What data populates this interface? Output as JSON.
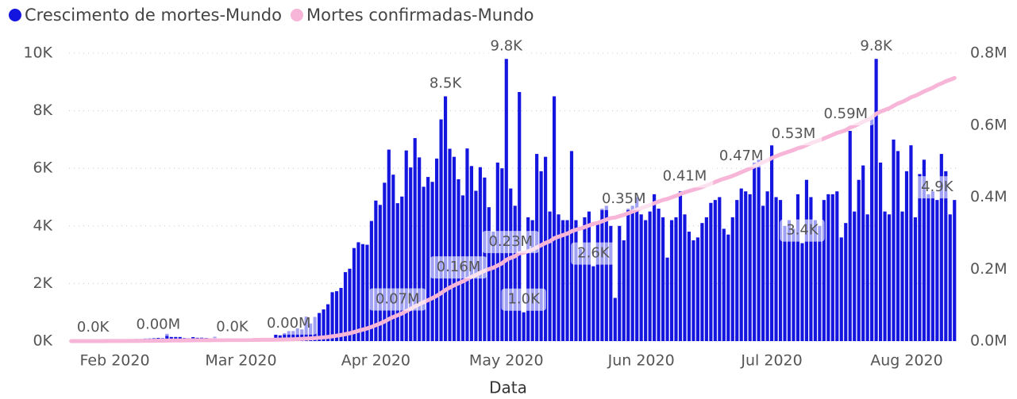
{
  "chart_data": {
    "type": "bar_line",
    "x_label": "Data",
    "categories": [
      null,
      null,
      null,
      null,
      null,
      null,
      null,
      null,
      null,
      null,
      "Feb 2020",
      null,
      null,
      null,
      null,
      null,
      null,
      null,
      null,
      null,
      null,
      null,
      null,
      null,
      null,
      null,
      null,
      null,
      null,
      null,
      null,
      null,
      null,
      null,
      null,
      null,
      null,
      null,
      null,
      "Mar 2020",
      null,
      null,
      null,
      null,
      null,
      null,
      null,
      null,
      null,
      null,
      null,
      null,
      null,
      null,
      null,
      null,
      null,
      null,
      null,
      null,
      null,
      null,
      null,
      null,
      null,
      null,
      null,
      null,
      null,
      null,
      "Apr 2020",
      null,
      null,
      null,
      null,
      null,
      null,
      null,
      null,
      null,
      null,
      null,
      null,
      null,
      null,
      null,
      null,
      null,
      null,
      null,
      null,
      null,
      null,
      null,
      null,
      null,
      null,
      null,
      null,
      null,
      "May 2020",
      null,
      null,
      null,
      null,
      null,
      null,
      null,
      null,
      null,
      null,
      null,
      null,
      null,
      null,
      null,
      null,
      null,
      null,
      null,
      null,
      null,
      null,
      null,
      null,
      null,
      null,
      null,
      null,
      null,
      null,
      "Jun 2020",
      null,
      null,
      null,
      null,
      null,
      null,
      null,
      null,
      null,
      null,
      null,
      null,
      null,
      null,
      null,
      null,
      null,
      null,
      null,
      null,
      null,
      null,
      null,
      null,
      null,
      null,
      null,
      null,
      null,
      "Jul 2020",
      null,
      null,
      null,
      null,
      null,
      null,
      null,
      null,
      null,
      null,
      null,
      null,
      null,
      null,
      null,
      null,
      null,
      null,
      null,
      null,
      null,
      null,
      null,
      null,
      null,
      null,
      null,
      null,
      null,
      null,
      "Aug 2020",
      null,
      null,
      null,
      null,
      null,
      null,
      null,
      null,
      null,
      null,
      null
    ],
    "series": [
      {
        "name": "Crescimento de mortes-Mundo",
        "color": "#1515e0",
        "kind": "bar",
        "values": [
          17,
          0,
          8,
          16,
          14,
          26,
          49,
          2,
          38,
          42,
          46,
          45,
          57,
          64,
          66,
          73,
          73,
          86,
          89,
          97,
          108,
          97,
          254,
          143,
          143,
          142,
          106,
          98,
          139,
          115,
          118,
          109,
          97,
          150,
          71,
          64,
          37,
          35,
          58,
          67,
          73,
          80,
          81,
          100,
          100,
          104,
          99,
          222,
          200,
          276,
          348,
          350,
          446,
          405,
          850,
          613,
          839,
          976,
          1100,
          1279,
          1698,
          1733,
          1847,
          2395,
          2514,
          3232,
          3432,
          3368,
          3346,
          4172,
          4880,
          4730,
          5500,
          6650,
          5780,
          4790,
          5020,
          6620,
          6030,
          7050,
          6380,
          5360,
          5700,
          5530,
          6340,
          7700,
          8500,
          6680,
          6400,
          5620,
          5060,
          6690,
          6080,
          5220,
          6040,
          5680,
          4650,
          3800,
          6200,
          6000,
          9800,
          5300,
          4700,
          8650,
          1000,
          4300,
          4200,
          6500,
          5900,
          6400,
          4500,
          8500,
          4400,
          4200,
          4200,
          6600,
          4200,
          3200,
          4300,
          4500,
          2600,
          4100,
          4600,
          4700,
          4000,
          1500,
          4000,
          3500,
          4600,
          4700,
          5000,
          4400,
          4200,
          4500,
          5100,
          4600,
          4300,
          2900,
          4200,
          4300,
          5200,
          4400,
          3800,
          3500,
          3600,
          4100,
          4300,
          4800,
          4900,
          5000,
          3900,
          3700,
          4300,
          4900,
          5300,
          5200,
          5100,
          6200,
          6300,
          4700,
          5200,
          6800,
          5000,
          4900,
          4000,
          4200,
          3900,
          5100,
          3400,
          5600,
          5000,
          4200,
          4000,
          4900,
          5100,
          5100,
          5200,
          3600,
          4100,
          7300,
          4500,
          5600,
          6100,
          4400,
          7700,
          9800,
          6200,
          4500,
          4400,
          7000,
          6600,
          4500,
          5900,
          6800,
          4300,
          5800,
          6300,
          5100,
          5200,
          4900,
          6500,
          5900,
          4400,
          4900
        ],
        "value_labels": [
          null,
          null,
          null,
          null,
          null,
          "0.0K",
          null,
          null,
          null,
          null,
          null,
          null,
          null,
          null,
          null,
          null,
          null,
          null,
          null,
          null,
          null,
          null,
          null,
          null,
          null,
          null,
          null,
          null,
          null,
          null,
          null,
          null,
          null,
          null,
          null,
          null,
          null,
          "0.0K",
          null,
          null,
          null,
          null,
          null,
          null,
          null,
          null,
          null,
          null,
          null,
          null,
          null,
          null,
          null,
          null,
          null,
          null,
          null,
          null,
          null,
          null,
          null,
          null,
          null,
          null,
          null,
          null,
          null,
          null,
          null,
          null,
          null,
          null,
          null,
          null,
          null,
          null,
          null,
          null,
          null,
          null,
          null,
          null,
          null,
          null,
          null,
          null,
          "8.5K",
          null,
          null,
          null,
          null,
          null,
          null,
          null,
          null,
          null,
          null,
          null,
          null,
          null,
          "9.8K",
          null,
          null,
          null,
          "1.0K",
          null,
          null,
          null,
          null,
          null,
          null,
          null,
          null,
          null,
          null,
          null,
          null,
          null,
          null,
          null,
          "2.6K",
          null,
          null,
          null,
          null,
          null,
          null,
          null,
          null,
          null,
          null,
          null,
          null,
          null,
          null,
          null,
          null,
          null,
          null,
          null,
          null,
          null,
          null,
          null,
          null,
          null,
          null,
          null,
          null,
          null,
          null,
          null,
          null,
          null,
          null,
          null,
          null,
          null,
          null,
          null,
          null,
          null,
          null,
          null,
          null,
          null,
          null,
          null,
          "3.4K",
          null,
          null,
          null,
          null,
          null,
          null,
          null,
          null,
          null,
          null,
          null,
          null,
          null,
          null,
          null,
          null,
          "9.8K",
          null,
          null,
          null,
          null,
          null,
          null,
          null,
          null,
          null,
          null,
          null,
          null,
          null,
          "4.9K",
          null,
          null,
          null,
          null
        ]
      },
      {
        "name": "Mortes confirmadas-Mundo",
        "color": "#f7b5d8",
        "kind": "line",
        "axis": "y2",
        "values": [
          17,
          17,
          25,
          41,
          56,
          82,
          131,
          133,
          171,
          213,
          259,
          304,
          361,
          425,
          491,
          564,
          637,
          723,
          812,
          909,
          1017,
          1114,
          1368,
          1511,
          1654,
          1796,
          1902,
          2000,
          2139,
          2254,
          2372,
          2481,
          2578,
          2728,
          2799,
          2863,
          2900,
          2935,
          2993,
          3060,
          3133,
          3213,
          3294,
          3394,
          3494,
          3598,
          3697,
          3919,
          4119,
          4395,
          4743,
          5093,
          5539,
          5944,
          6794,
          7407,
          8246,
          9222,
          10322,
          11601,
          13299,
          15032,
          16879,
          19274,
          21788,
          25020,
          28452,
          31820,
          35166,
          39338,
          44218,
          48948,
          54448,
          61098,
          66878,
          71668,
          76688,
          83308,
          89338,
          96388,
          102768,
          108128,
          113828,
          119358,
          125698,
          133398,
          141898,
          148578,
          154978,
          160598,
          165658,
          172348,
          178428,
          183648,
          189688,
          195368,
          200018,
          203818,
          210000,
          216000,
          225800,
          231100,
          235800,
          244450,
          245450,
          249750,
          253950,
          260450,
          266350,
          272750,
          277250,
          285750,
          290150,
          294350,
          298550,
          305150,
          309350,
          312550,
          316850,
          321350,
          325650,
          328250,
          333000,
          337700,
          341700,
          343200,
          347200,
          350700,
          355300,
          360000,
          365000,
          369400,
          373600,
          378100,
          383200,
          387800,
          392100,
          395000,
          399200,
          403500,
          408700,
          413100,
          416900,
          420400,
          424000,
          428100,
          432400,
          437200,
          442100,
          447100,
          451000,
          454700,
          459000,
          463900,
          469200,
          474400,
          479500,
          485700,
          492000,
          496700,
          501900,
          508700,
          513700,
          518600,
          522600,
          526800,
          530700,
          535800,
          539200,
          544800,
          549800,
          554000,
          558000,
          562900,
          568000,
          573100,
          578300,
          581900,
          586000,
          593300,
          597800,
          603400,
          609500,
          613900,
          621600,
          631400,
          637600,
          642100,
          646500,
          653500,
          660100,
          664600,
          670500,
          677300,
          681600,
          687400,
          693700,
          698800,
          704000,
          710900,
          715800,
          721700,
          726100,
          731000
        ],
        "value_labels": [
          null,
          null,
          null,
          null,
          null,
          null,
          null,
          null,
          null,
          null,
          null,
          null,
          null,
          null,
          null,
          null,
          null,
          null,
          null,
          null,
          "0.00M",
          null,
          null,
          null,
          null,
          null,
          null,
          null,
          null,
          null,
          null,
          null,
          null,
          null,
          null,
          null,
          null,
          null,
          null,
          null,
          null,
          null,
          null,
          null,
          null,
          null,
          null,
          null,
          null,
          null,
          "0.00M",
          null,
          null,
          null,
          null,
          null,
          null,
          null,
          null,
          null,
          null,
          null,
          null,
          null,
          null,
          null,
          null,
          null,
          null,
          null,
          null,
          null,
          null,
          null,
          null,
          "0.07M",
          null,
          null,
          null,
          null,
          null,
          null,
          null,
          null,
          null,
          null,
          null,
          null,
          null,
          "0.16M",
          null,
          null,
          null,
          null,
          null,
          null,
          null,
          null,
          null,
          null,
          null,
          "0.23M",
          null,
          null,
          null,
          null,
          null,
          null,
          null,
          null,
          null,
          null,
          null,
          null,
          null,
          null,
          null,
          null,
          null,
          null,
          null,
          null,
          null,
          null,
          null,
          null,
          null,
          "0.35M",
          null,
          null,
          null,
          null,
          null,
          null,
          null,
          null,
          null,
          null,
          null,
          null,
          null,
          "0.41M",
          null,
          null,
          null,
          null,
          null,
          null,
          null,
          null,
          null,
          null,
          null,
          null,
          "0.47M",
          null,
          null,
          null,
          null,
          null,
          null,
          null,
          null,
          null,
          null,
          null,
          "0.53M",
          null,
          null,
          null,
          null,
          null,
          null,
          null,
          null,
          null,
          null,
          null,
          "0.59M",
          null,
          null,
          null,
          null,
          null,
          null,
          null,
          null,
          null,
          null,
          null,
          null,
          null,
          null,
          null,
          null,
          null,
          null,
          null,
          null,
          null,
          null,
          null,
          null,
          null
        ]
      }
    ],
    "ylim": [
      0,
      10000
    ],
    "yticks": [
      {
        "value": 0,
        "label": "0K"
      },
      {
        "value": 2000,
        "label": "2K"
      },
      {
        "value": 4000,
        "label": "4K"
      },
      {
        "value": 6000,
        "label": "6K"
      },
      {
        "value": 8000,
        "label": "8K"
      },
      {
        "value": 10000,
        "label": "10K"
      }
    ],
    "y2lim": [
      0,
      800000
    ],
    "y2ticks": [
      {
        "value": 0,
        "label": "0.0M"
      },
      {
        "value": 200000,
        "label": "0.2M"
      },
      {
        "value": 400000,
        "label": "0.4M"
      },
      {
        "value": 600000,
        "label": "0.6M"
      },
      {
        "value": 800000,
        "label": "0.8M"
      }
    ],
    "grid": true,
    "legend": "top-left"
  }
}
